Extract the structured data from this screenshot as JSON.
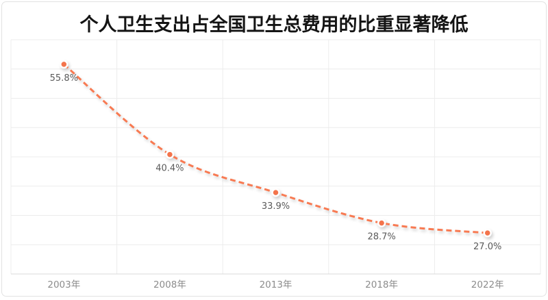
{
  "card": {
    "background": "#ffffff",
    "border_color": "#e2e2e2"
  },
  "chart_data": {
    "type": "line",
    "title": "个人卫生支出占全国卫生总费用的比重显著降低",
    "categories": [
      "2003年",
      "2008年",
      "2013年",
      "2018年",
      "2022年"
    ],
    "values": [
      55.8,
      40.4,
      33.9,
      28.7,
      27.0
    ],
    "data_labels": [
      "55.8%",
      "40.4%",
      "33.9%",
      "28.7%",
      "27.0%"
    ],
    "xlabel": "",
    "ylabel": "",
    "ylim": [
      20,
      60
    ],
    "y_step": 5,
    "grid": true,
    "legend": "none",
    "line_style": "dashed",
    "smooth": true,
    "colors": {
      "line": "#f87a52",
      "marker_fill": "#f3744c",
      "marker_ring": "#ffffff",
      "grid_line": "#ececec",
      "axis_line": "#d9d9d9",
      "title_text": "#141414",
      "data_label_text": "#595959",
      "axis_label_text": "#8c8c8c"
    }
  }
}
